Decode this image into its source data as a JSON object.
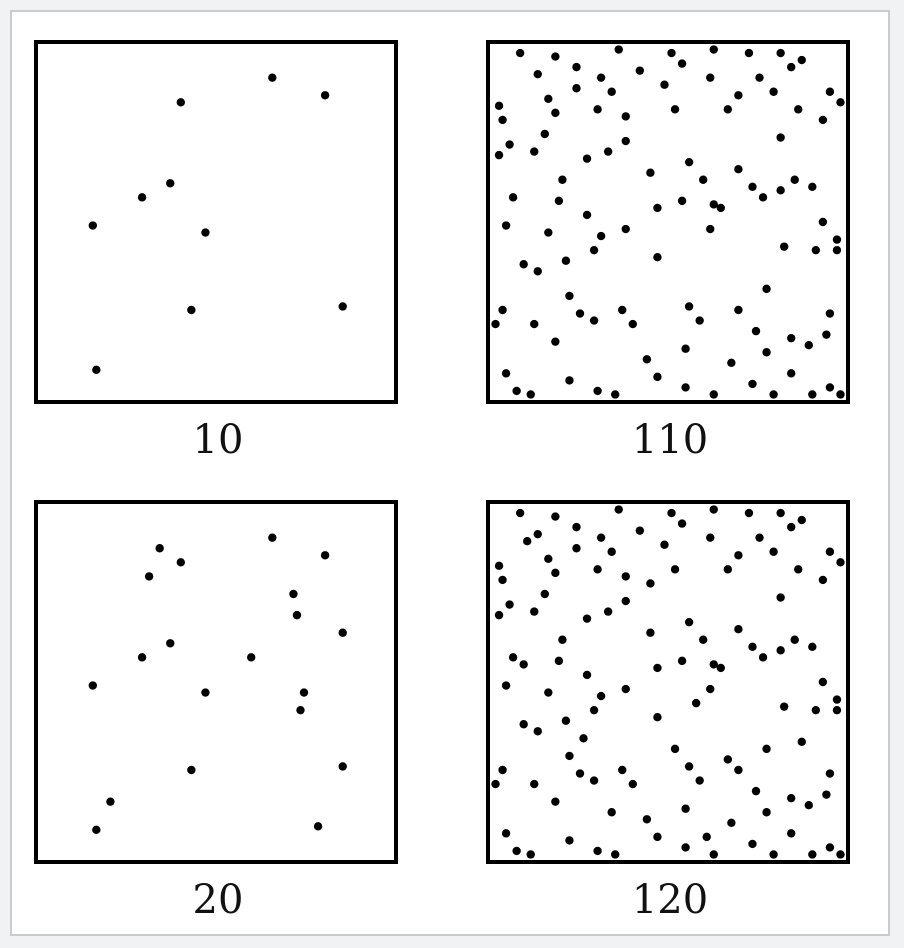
{
  "figure": {
    "panels": [
      {
        "label": "10",
        "points": [
          [
            0.66,
            0.91
          ],
          [
            0.81,
            0.86
          ],
          [
            0.4,
            0.84
          ],
          [
            0.37,
            0.61
          ],
          [
            0.29,
            0.57
          ],
          [
            0.15,
            0.49
          ],
          [
            0.47,
            0.47
          ],
          [
            0.43,
            0.25
          ],
          [
            0.86,
            0.26
          ],
          [
            0.16,
            0.08
          ]
        ]
      },
      {
        "label": "110",
        "points": [
          [
            0.08,
            0.98
          ],
          [
            0.18,
            0.97
          ],
          [
            0.36,
            0.99
          ],
          [
            0.51,
            0.98
          ],
          [
            0.63,
            0.99
          ],
          [
            0.73,
            0.98
          ],
          [
            0.82,
            0.98
          ],
          [
            0.88,
            0.96
          ],
          [
            0.13,
            0.92
          ],
          [
            0.24,
            0.94
          ],
          [
            0.31,
            0.91
          ],
          [
            0.42,
            0.93
          ],
          [
            0.54,
            0.95
          ],
          [
            0.62,
            0.91
          ],
          [
            0.76,
            0.91
          ],
          [
            0.85,
            0.94
          ],
          [
            0.02,
            0.83
          ],
          [
            0.16,
            0.85
          ],
          [
            0.24,
            0.88
          ],
          [
            0.34,
            0.87
          ],
          [
            0.49,
            0.89
          ],
          [
            0.7,
            0.86
          ],
          [
            0.8,
            0.87
          ],
          [
            0.96,
            0.87
          ],
          [
            0.03,
            0.79
          ],
          [
            0.18,
            0.81
          ],
          [
            0.3,
            0.82
          ],
          [
            0.38,
            0.8
          ],
          [
            0.52,
            0.82
          ],
          [
            0.67,
            0.82
          ],
          [
            0.87,
            0.82
          ],
          [
            0.99,
            0.84
          ],
          [
            0.05,
            0.72
          ],
          [
            0.15,
            0.75
          ],
          [
            0.27,
            0.68
          ],
          [
            0.38,
            0.73
          ],
          [
            0.56,
            0.67
          ],
          [
            0.7,
            0.65
          ],
          [
            0.82,
            0.74
          ],
          [
            0.94,
            0.79
          ],
          [
            0.02,
            0.69
          ],
          [
            0.12,
            0.7
          ],
          [
            0.2,
            0.62
          ],
          [
            0.33,
            0.7
          ],
          [
            0.45,
            0.64
          ],
          [
            0.6,
            0.62
          ],
          [
            0.74,
            0.6
          ],
          [
            0.86,
            0.62
          ],
          [
            0.06,
            0.57
          ],
          [
            0.19,
            0.56
          ],
          [
            0.27,
            0.52
          ],
          [
            0.38,
            0.48
          ],
          [
            0.54,
            0.56
          ],
          [
            0.63,
            0.55
          ],
          [
            0.77,
            0.57
          ],
          [
            0.91,
            0.6
          ],
          [
            0.04,
            0.49
          ],
          [
            0.16,
            0.47
          ],
          [
            0.29,
            0.42
          ],
          [
            0.47,
            0.54
          ],
          [
            0.65,
            0.54
          ],
          [
            0.82,
            0.59
          ],
          [
            0.94,
            0.5
          ],
          [
            0.98,
            0.45
          ],
          [
            0.09,
            0.38
          ],
          [
            0.21,
            0.39
          ],
          [
            0.31,
            0.46
          ],
          [
            0.47,
            0.4
          ],
          [
            0.62,
            0.48
          ],
          [
            0.83,
            0.43
          ],
          [
            0.92,
            0.42
          ],
          [
            0.98,
            0.42
          ],
          [
            0.03,
            0.25
          ],
          [
            0.13,
            0.36
          ],
          [
            0.22,
            0.29
          ],
          [
            0.37,
            0.25
          ],
          [
            0.56,
            0.26
          ],
          [
            0.7,
            0.25
          ],
          [
            0.78,
            0.31
          ],
          [
            0.96,
            0.24
          ],
          [
            0.01,
            0.21
          ],
          [
            0.12,
            0.21
          ],
          [
            0.25,
            0.24
          ],
          [
            0.4,
            0.21
          ],
          [
            0.59,
            0.22
          ],
          [
            0.75,
            0.19
          ],
          [
            0.85,
            0.17
          ],
          [
            0.95,
            0.18
          ],
          [
            0.04,
            0.07
          ],
          [
            0.18,
            0.16
          ],
          [
            0.29,
            0.22
          ],
          [
            0.44,
            0.11
          ],
          [
            0.55,
            0.14
          ],
          [
            0.68,
            0.1
          ],
          [
            0.78,
            0.13
          ],
          [
            0.9,
            0.15
          ],
          [
            0.07,
            0.02
          ],
          [
            0.22,
            0.05
          ],
          [
            0.35,
            0.01
          ],
          [
            0.47,
            0.06
          ],
          [
            0.63,
            0.01
          ],
          [
            0.74,
            0.04
          ],
          [
            0.85,
            0.07
          ],
          [
            0.96,
            0.03
          ],
          [
            0.11,
            0.01
          ],
          [
            0.3,
            0.02
          ],
          [
            0.55,
            0.03
          ],
          [
            0.8,
            0.01
          ],
          [
            0.91,
            0.01
          ],
          [
            0.99,
            0.01
          ]
        ]
      },
      {
        "label": "20",
        "points": [
          [
            0.34,
            0.88
          ],
          [
            0.66,
            0.91
          ],
          [
            0.81,
            0.86
          ],
          [
            0.4,
            0.84
          ],
          [
            0.31,
            0.8
          ],
          [
            0.72,
            0.75
          ],
          [
            0.73,
            0.69
          ],
          [
            0.86,
            0.64
          ],
          [
            0.37,
            0.61
          ],
          [
            0.29,
            0.57
          ],
          [
            0.6,
            0.57
          ],
          [
            0.15,
            0.49
          ],
          [
            0.47,
            0.47
          ],
          [
            0.75,
            0.47
          ],
          [
            0.74,
            0.42
          ],
          [
            0.43,
            0.25
          ],
          [
            0.86,
            0.26
          ],
          [
            0.2,
            0.16
          ],
          [
            0.16,
            0.08
          ],
          [
            0.79,
            0.09
          ]
        ]
      },
      {
        "label": "120",
        "points": [
          [
            0.08,
            0.98
          ],
          [
            0.18,
            0.97
          ],
          [
            0.36,
            0.99
          ],
          [
            0.51,
            0.98
          ],
          [
            0.63,
            0.99
          ],
          [
            0.73,
            0.98
          ],
          [
            0.82,
            0.98
          ],
          [
            0.88,
            0.96
          ],
          [
            0.13,
            0.92
          ],
          [
            0.24,
            0.94
          ],
          [
            0.31,
            0.91
          ],
          [
            0.42,
            0.93
          ],
          [
            0.54,
            0.95
          ],
          [
            0.62,
            0.91
          ],
          [
            0.76,
            0.91
          ],
          [
            0.85,
            0.94
          ],
          [
            0.02,
            0.83
          ],
          [
            0.16,
            0.85
          ],
          [
            0.24,
            0.88
          ],
          [
            0.34,
            0.87
          ],
          [
            0.49,
            0.89
          ],
          [
            0.7,
            0.86
          ],
          [
            0.8,
            0.87
          ],
          [
            0.96,
            0.87
          ],
          [
            0.03,
            0.79
          ],
          [
            0.18,
            0.81
          ],
          [
            0.3,
            0.82
          ],
          [
            0.38,
            0.8
          ],
          [
            0.52,
            0.82
          ],
          [
            0.67,
            0.82
          ],
          [
            0.87,
            0.82
          ],
          [
            0.99,
            0.84
          ],
          [
            0.05,
            0.72
          ],
          [
            0.15,
            0.75
          ],
          [
            0.27,
            0.68
          ],
          [
            0.38,
            0.73
          ],
          [
            0.56,
            0.67
          ],
          [
            0.7,
            0.65
          ],
          [
            0.82,
            0.74
          ],
          [
            0.94,
            0.79
          ],
          [
            0.02,
            0.69
          ],
          [
            0.12,
            0.7
          ],
          [
            0.2,
            0.62
          ],
          [
            0.33,
            0.7
          ],
          [
            0.45,
            0.64
          ],
          [
            0.6,
            0.62
          ],
          [
            0.74,
            0.6
          ],
          [
            0.86,
            0.62
          ],
          [
            0.06,
            0.57
          ],
          [
            0.19,
            0.56
          ],
          [
            0.27,
            0.52
          ],
          [
            0.38,
            0.48
          ],
          [
            0.54,
            0.56
          ],
          [
            0.63,
            0.55
          ],
          [
            0.77,
            0.57
          ],
          [
            0.91,
            0.6
          ],
          [
            0.04,
            0.49
          ],
          [
            0.16,
            0.47
          ],
          [
            0.29,
            0.42
          ],
          [
            0.47,
            0.54
          ],
          [
            0.65,
            0.54
          ],
          [
            0.82,
            0.59
          ],
          [
            0.94,
            0.5
          ],
          [
            0.98,
            0.45
          ],
          [
            0.09,
            0.38
          ],
          [
            0.21,
            0.39
          ],
          [
            0.31,
            0.46
          ],
          [
            0.47,
            0.4
          ],
          [
            0.62,
            0.48
          ],
          [
            0.83,
            0.43
          ],
          [
            0.92,
            0.42
          ],
          [
            0.98,
            0.42
          ],
          [
            0.03,
            0.25
          ],
          [
            0.13,
            0.36
          ],
          [
            0.22,
            0.29
          ],
          [
            0.37,
            0.25
          ],
          [
            0.56,
            0.26
          ],
          [
            0.7,
            0.25
          ],
          [
            0.78,
            0.31
          ],
          [
            0.96,
            0.24
          ],
          [
            0.01,
            0.21
          ],
          [
            0.12,
            0.21
          ],
          [
            0.25,
            0.24
          ],
          [
            0.4,
            0.21
          ],
          [
            0.59,
            0.22
          ],
          [
            0.75,
            0.19
          ],
          [
            0.85,
            0.17
          ],
          [
            0.95,
            0.18
          ],
          [
            0.04,
            0.07
          ],
          [
            0.18,
            0.16
          ],
          [
            0.29,
            0.22
          ],
          [
            0.44,
            0.11
          ],
          [
            0.55,
            0.14
          ],
          [
            0.68,
            0.1
          ],
          [
            0.78,
            0.13
          ],
          [
            0.9,
            0.15
          ],
          [
            0.07,
            0.02
          ],
          [
            0.22,
            0.05
          ],
          [
            0.35,
            0.01
          ],
          [
            0.47,
            0.06
          ],
          [
            0.63,
            0.01
          ],
          [
            0.74,
            0.04
          ],
          [
            0.85,
            0.07
          ],
          [
            0.96,
            0.03
          ],
          [
            0.11,
            0.01
          ],
          [
            0.3,
            0.02
          ],
          [
            0.55,
            0.03
          ],
          [
            0.8,
            0.01
          ],
          [
            0.91,
            0.01
          ],
          [
            0.99,
            0.01
          ],
          [
            0.1,
            0.9
          ],
          [
            0.45,
            0.78
          ],
          [
            0.58,
            0.44
          ],
          [
            0.26,
            0.34
          ],
          [
            0.52,
            0.31
          ],
          [
            0.67,
            0.28
          ],
          [
            0.34,
            0.13
          ],
          [
            0.61,
            0.06
          ],
          [
            0.88,
            0.33
          ],
          [
            0.09,
            0.55
          ]
        ]
      }
    ]
  }
}
